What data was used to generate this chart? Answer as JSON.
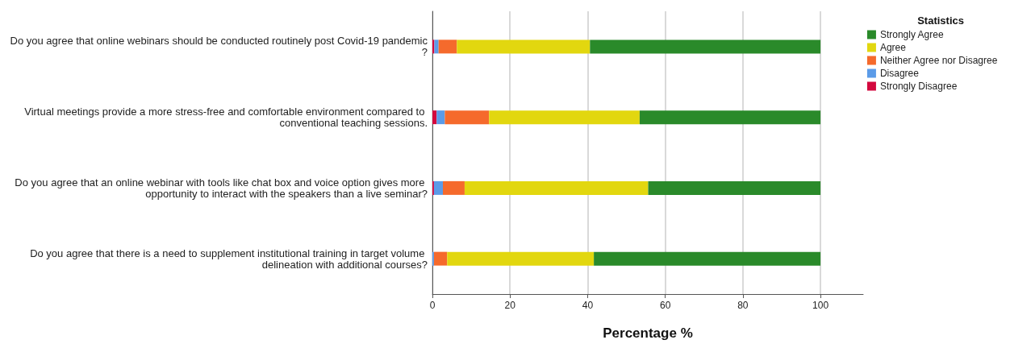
{
  "chart_data": {
    "type": "bar",
    "orientation": "horizontal",
    "stacked": true,
    "xlabel": "Percentage %",
    "legend_title": "Statistics",
    "legend": "top right",
    "grid": "x",
    "categories": [
      "Do you agree that online webinars should be conducted routinely post Covid-19 pandemic?",
      "Virtual meetings provide a more stress-free and comfortable environment compared to conventional teaching sessions.",
      "Do you agree that an online webinar with tools like chat box and voice option gives more opportunity to interact with the speakers than a live seminar?",
      "Do you agree that there is a need to supplement institutional training in target volume delineation with additional courses?"
    ],
    "xlim": [
      0,
      111
    ],
    "xticks": [
      0,
      20,
      40,
      60,
      80,
      100
    ],
    "series": [
      {
        "name": "Strongly Disagree",
        "color": "#d3093e",
        "values": [
          0.5,
          1.1,
          0.4,
          0
        ]
      },
      {
        "name": "Disagree",
        "color": "#5b9be8",
        "values": [
          1.1,
          2.1,
          2.3,
          0.4
        ]
      },
      {
        "name": "Neither Agree nor Disagree",
        "color": "#f56a2c",
        "values": [
          4.7,
          11.4,
          5.6,
          3.4
        ]
      },
      {
        "name": "Agree",
        "color": "#e2d70f",
        "values": [
          34.3,
          38.8,
          47.3,
          37.8
        ]
      },
      {
        "name": "Strongly Agree",
        "color": "#2a8a2a",
        "values": [
          59.4,
          46.6,
          44.4,
          58.4
        ]
      }
    ]
  }
}
